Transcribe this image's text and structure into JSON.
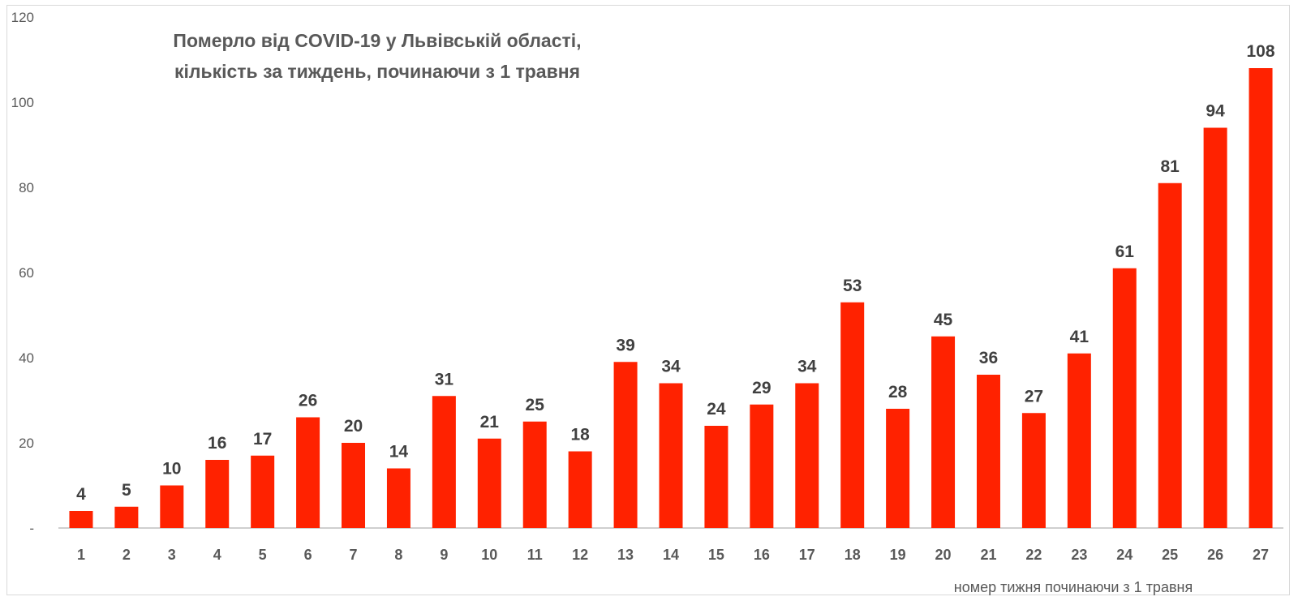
{
  "chart_data": {
    "type": "bar",
    "title_lines": [
      "Померло від COVID-19 у Львівській області,",
      "кількість за тиждень, починаючи з 1 травня"
    ],
    "xlabel": "номер тижня починаючи з 1 травня",
    "ylabel": "",
    "ylim": [
      0,
      120
    ],
    "yticks": [
      {
        "value": 0,
        "label": "-"
      },
      {
        "value": 20,
        "label": "20"
      },
      {
        "value": 40,
        "label": "40"
      },
      {
        "value": 60,
        "label": "60"
      },
      {
        "value": 80,
        "label": "80"
      },
      {
        "value": 100,
        "label": "100"
      },
      {
        "value": 120,
        "label": "120"
      }
    ],
    "categories": [
      "1",
      "2",
      "3",
      "4",
      "5",
      "6",
      "7",
      "8",
      "9",
      "10",
      "11",
      "12",
      "13",
      "14",
      "15",
      "16",
      "17",
      "18",
      "19",
      "20",
      "21",
      "22",
      "23",
      "24",
      "25",
      "26",
      "27"
    ],
    "values": [
      4,
      5,
      10,
      16,
      17,
      26,
      20,
      14,
      31,
      21,
      25,
      18,
      39,
      34,
      24,
      29,
      34,
      53,
      28,
      45,
      36,
      27,
      41,
      61,
      81,
      94,
      108
    ],
    "data_labels": [
      "4",
      "5",
      "10",
      "16",
      "17",
      "26",
      "20",
      "14",
      "31",
      "21",
      "25",
      "18",
      "39",
      "34",
      "24",
      "29",
      "34",
      "53",
      "28",
      "45",
      "36",
      "27",
      "41",
      "61",
      "81",
      "94",
      "108"
    ],
    "bar_color": "#ff2200",
    "grid": false,
    "legend": "none"
  }
}
